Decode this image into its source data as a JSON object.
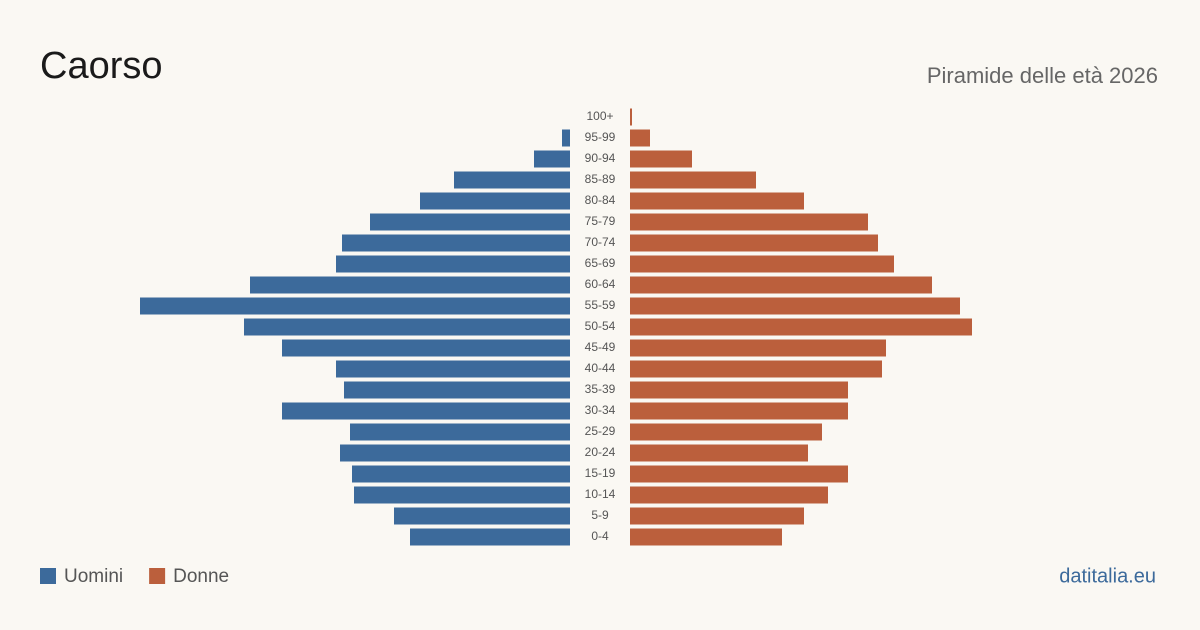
{
  "chart_data": {
    "type": "pyramid",
    "title": "Caorso",
    "subtitle": "Piramide delle età 2026",
    "source": "datitalia.eu",
    "categories": [
      "100+",
      "95-99",
      "90-94",
      "85-89",
      "80-84",
      "75-79",
      "70-74",
      "65-69",
      "60-64",
      "55-59",
      "50-54",
      "45-49",
      "40-44",
      "35-39",
      "30-34",
      "25-29",
      "20-24",
      "15-19",
      "10-14",
      "5-9",
      "0-4"
    ],
    "series": [
      {
        "name": "Uomini",
        "color": "#3c6a9b",
        "values": [
          0,
          4,
          18,
          58,
          75,
          100,
          114,
          117,
          160,
          215,
          163,
          144,
          117,
          113,
          144,
          110,
          115,
          109,
          108,
          88,
          80
        ]
      },
      {
        "name": "Donne",
        "color": "#bb5f3c",
        "values": [
          1,
          10,
          31,
          63,
          87,
          119,
          124,
          132,
          151,
          165,
          171,
          128,
          126,
          109,
          109,
          96,
          89,
          109,
          99,
          87,
          76
        ]
      }
    ]
  }
}
